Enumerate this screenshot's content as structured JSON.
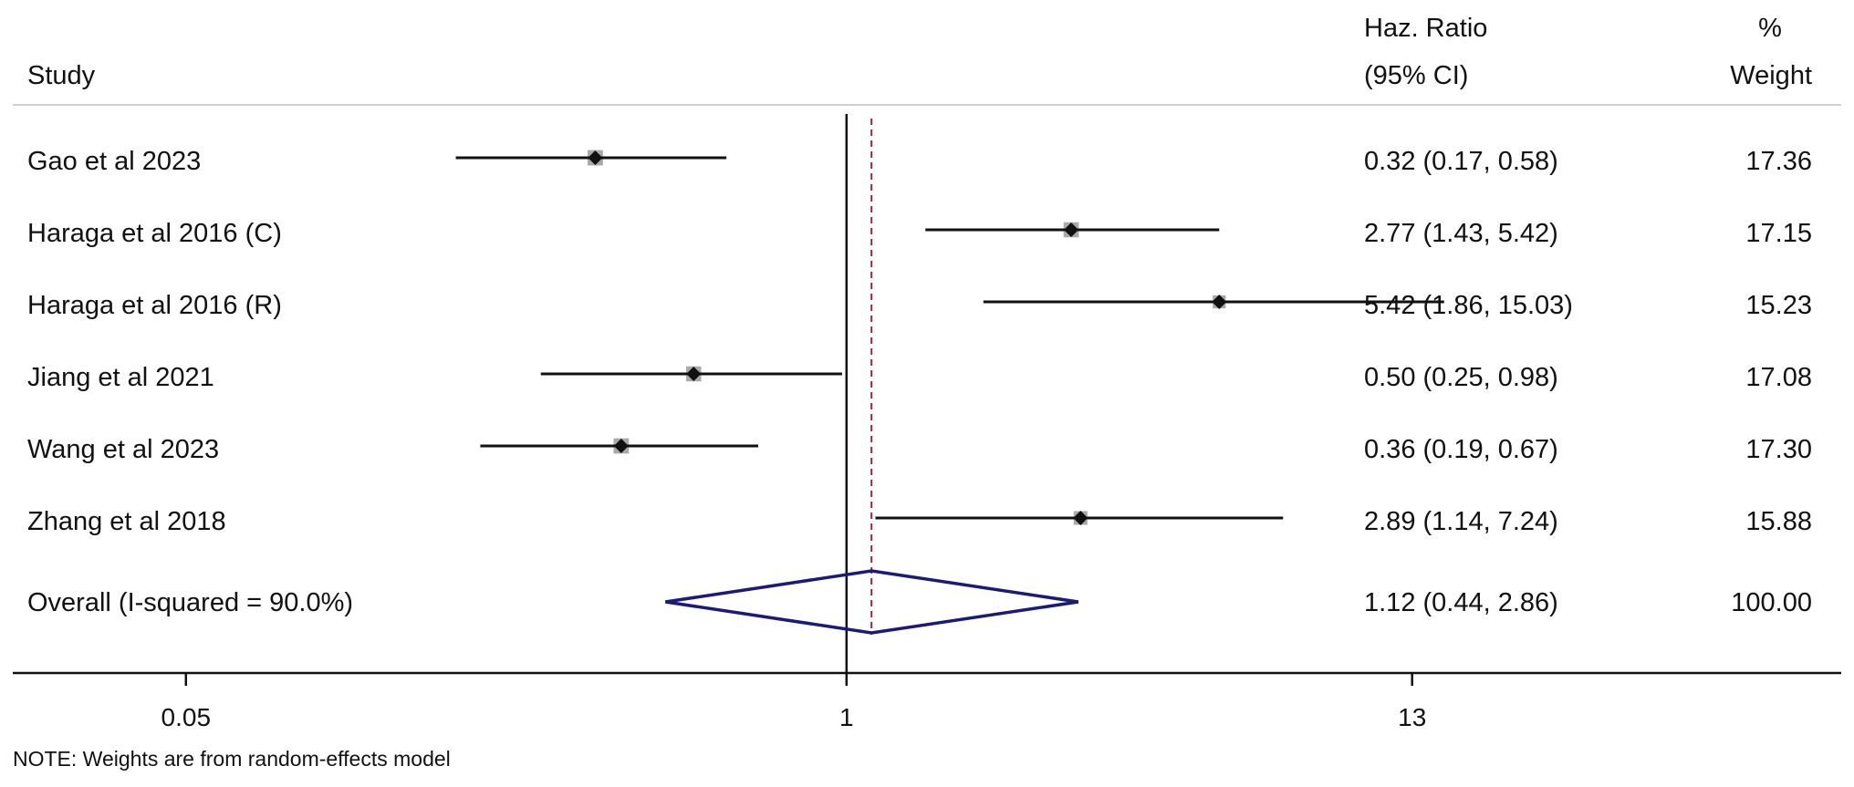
{
  "headers": {
    "study": "Study",
    "effect_line1": "Haz. Ratio",
    "effect_line2": "(95% CI)",
    "weight_line1": "%",
    "weight_line2": "Weight"
  },
  "note": "NOTE: Weights are from random-effects model",
  "colors": {
    "line": "#111111",
    "weight_box": "#a9a9a9",
    "diamond": "#1a1a7a",
    "reference_dashed": "#8b2c3c",
    "separator": "#d0d0d0"
  },
  "chart_data": {
    "type": "forest",
    "x_scale": "log",
    "xlim": [
      0.0228,
      91.0
    ],
    "ticks": [
      {
        "value": 0.05,
        "label": "0.05"
      },
      {
        "value": 1,
        "label": "1"
      },
      {
        "value": 13,
        "label": "13"
      }
    ],
    "null_line": 1,
    "overall_reference": 1.12,
    "studies": [
      {
        "name": "Gao et al 2023",
        "hr": 0.32,
        "lo": 0.17,
        "hi": 0.58,
        "ci_text": "0.32 (0.17, 0.58)",
        "weight": "17.36"
      },
      {
        "name": "Haraga et al 2016 (C)",
        "hr": 2.77,
        "lo": 1.43,
        "hi": 5.42,
        "ci_text": "2.77 (1.43, 5.42)",
        "weight": "17.15"
      },
      {
        "name": "Haraga et al 2016 (R)",
        "hr": 5.42,
        "lo": 1.86,
        "hi": 15.03,
        "ci_text": "5.42 (1.86, 15.03)",
        "weight": "15.23"
      },
      {
        "name": "Jiang et al 2021",
        "hr": 0.5,
        "lo": 0.25,
        "hi": 0.98,
        "ci_text": "0.50 (0.25, 0.98)",
        "weight": "17.08"
      },
      {
        "name": "Wang et al 2023",
        "hr": 0.36,
        "lo": 0.19,
        "hi": 0.67,
        "ci_text": "0.36 (0.19, 0.67)",
        "weight": "17.30"
      },
      {
        "name": "Zhang et al 2018",
        "hr": 2.89,
        "lo": 1.14,
        "hi": 7.24,
        "ci_text": "2.89 (1.14, 7.24)",
        "weight": "15.88"
      }
    ],
    "overall": {
      "name": "Overall (I-squared = 90.0%)",
      "hr": 1.12,
      "lo": 0.44,
      "hi": 2.86,
      "ci_text": "1.12 (0.44, 2.86)",
      "weight": "100.00"
    }
  }
}
